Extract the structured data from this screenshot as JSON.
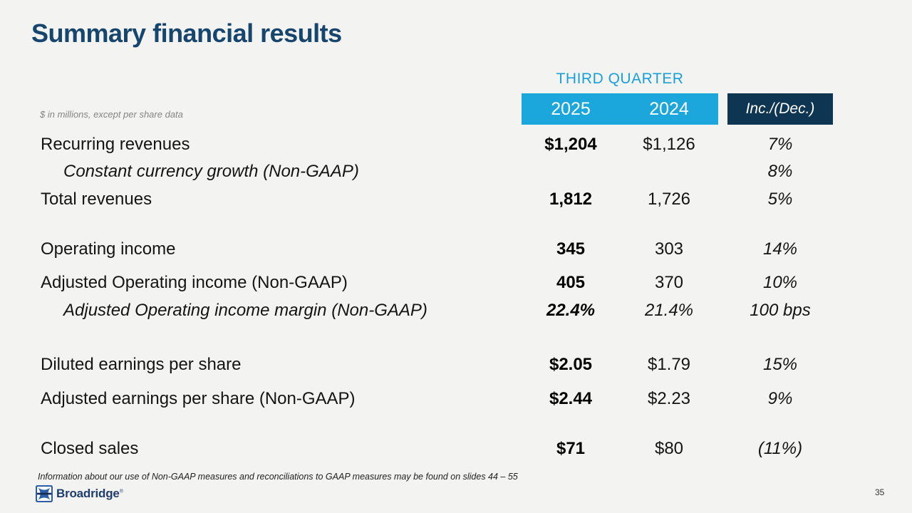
{
  "title": "Summary financial results",
  "subnote": "$ in millions, except per share data",
  "header": {
    "quarter_label": "THIRD QUARTER",
    "year_left": "2025",
    "year_right": "2024",
    "change_label": "Inc./(Dec.)"
  },
  "colors": {
    "background": "#F3F3F1",
    "title_navy": "#16456D",
    "accent_cyan": "#1BA6DC",
    "dark_navy": "#0E3551",
    "body_text": "#141414",
    "muted_gray": "#848484",
    "logo_blue": "#2E5FA5",
    "logo_navy": "#1E3C6E"
  },
  "table": {
    "rows": [
      {
        "label": "Recurring revenues",
        "indent": false,
        "v2025": "$1,204",
        "v2025_italic": false,
        "v2024": "$1,126",
        "v2024_italic": false,
        "change": "7%"
      },
      {
        "label": "Constant currency growth (Non-GAAP)",
        "indent": true,
        "v2025": "",
        "v2025_italic": false,
        "v2024": "",
        "v2024_italic": false,
        "change": "8%"
      },
      {
        "label": "Total revenues",
        "indent": false,
        "v2025": "1,812",
        "v2025_italic": false,
        "v2024": "1,726",
        "v2024_italic": false,
        "change": "5%"
      },
      {
        "label": "Operating income",
        "indent": false,
        "v2025": "345",
        "v2025_italic": false,
        "v2024": "303",
        "v2024_italic": false,
        "change": "14%"
      },
      {
        "label": "Adjusted Operating income (Non-GAAP)",
        "indent": false,
        "v2025": "405",
        "v2025_italic": false,
        "v2024": "370",
        "v2024_italic": false,
        "change": "10%"
      },
      {
        "label": "Adjusted Operating income margin (Non-GAAP)",
        "indent": true,
        "v2025": "22.4%",
        "v2025_italic": true,
        "v2024": "21.4%",
        "v2024_italic": true,
        "change": "100 bps"
      },
      {
        "label": "Diluted earnings per share",
        "indent": false,
        "v2025": "$2.05",
        "v2025_italic": false,
        "v2024": "$1.79",
        "v2024_italic": false,
        "change": "15%"
      },
      {
        "label": "Adjusted earnings per share (Non-GAAP)",
        "indent": false,
        "v2025": "$2.44",
        "v2025_italic": false,
        "v2024": "$2.23",
        "v2024_italic": false,
        "change": "9%"
      },
      {
        "label": "Closed sales",
        "indent": false,
        "v2025": "$71",
        "v2025_italic": false,
        "v2024": "$80",
        "v2024_italic": false,
        "change": "(11%)"
      }
    ]
  },
  "footnote": "Information about our use of Non-GAAP measures and reconciliations to GAAP measures may be found on slides 44 – 55",
  "logo": {
    "text": "Broadridge",
    "registered": "®"
  },
  "page_number": "35"
}
